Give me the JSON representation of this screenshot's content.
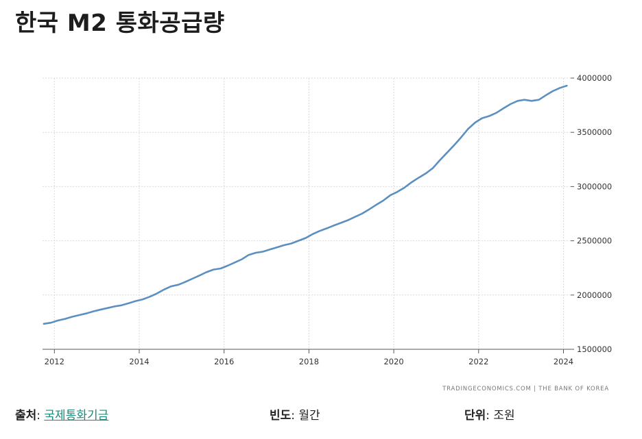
{
  "page": {
    "title": "한국 M2 통화공급량",
    "credit": "TRADINGECONOMICS.COM  |  THE BANK OF KOREA"
  },
  "footer": {
    "source_key": "출처",
    "source_value": "국제통화기금",
    "frequency_key": "빈도",
    "frequency_value": "월간",
    "unit_key": "단위",
    "unit_value": "조원"
  },
  "colors": {
    "line": "#5b8fbf",
    "grid": "#d9d9d9",
    "link": "#1b8a7a"
  },
  "chart_data": {
    "type": "line",
    "title": "한국 M2 통화공급량",
    "xlabel": "",
    "ylabel": "",
    "grid": true,
    "y_axis_side": "right",
    "xlim": [
      2011.72,
      2024.17
    ],
    "ylim": [
      1500000,
      4000000
    ],
    "x_ticks": [
      2012,
      2014,
      2016,
      2018,
      2020,
      2022,
      2024
    ],
    "y_ticks": [
      1500000,
      2000000,
      2500000,
      3000000,
      3500000,
      4000000
    ],
    "series": [
      {
        "x": [
          2011.75,
          2011.92,
          2012.08,
          2012.25,
          2012.42,
          2012.58,
          2012.75,
          2012.92,
          2013.08,
          2013.25,
          2013.42,
          2013.58,
          2013.75,
          2013.92,
          2014.08,
          2014.25,
          2014.42,
          2014.58,
          2014.75,
          2014.92,
          2015.08,
          2015.25,
          2015.42,
          2015.58,
          2015.75,
          2015.92,
          2016.08,
          2016.25,
          2016.42,
          2016.58,
          2016.75,
          2016.92,
          2017.08,
          2017.25,
          2017.42,
          2017.58,
          2017.75,
          2017.92,
          2018.08,
          2018.25,
          2018.42,
          2018.58,
          2018.75,
          2018.92,
          2019.08,
          2019.25,
          2019.42,
          2019.58,
          2019.75,
          2019.92,
          2020.08,
          2020.25,
          2020.42,
          2020.58,
          2020.75,
          2020.92,
          2021.08,
          2021.25,
          2021.42,
          2021.58,
          2021.75,
          2021.92,
          2022.08,
          2022.25,
          2022.42,
          2022.58,
          2022.75,
          2022.92,
          2023.08,
          2023.25,
          2023.42,
          2023.58,
          2023.75,
          2023.92,
          2024.08
        ],
        "values": [
          1735000,
          1745000,
          1765000,
          1780000,
          1800000,
          1815000,
          1830000,
          1850000,
          1865000,
          1880000,
          1895000,
          1905000,
          1925000,
          1945000,
          1960000,
          1985000,
          2015000,
          2050000,
          2080000,
          2095000,
          2120000,
          2150000,
          2180000,
          2210000,
          2235000,
          2245000,
          2270000,
          2300000,
          2330000,
          2370000,
          2390000,
          2400000,
          2420000,
          2440000,
          2460000,
          2475000,
          2500000,
          2525000,
          2560000,
          2590000,
          2615000,
          2640000,
          2665000,
          2690000,
          2720000,
          2750000,
          2790000,
          2830000,
          2870000,
          2920000,
          2950000,
          2990000,
          3040000,
          3080000,
          3120000,
          3170000,
          3240000,
          3310000,
          3380000,
          3450000,
          3530000,
          3590000,
          3630000,
          3650000,
          3680000,
          3720000,
          3760000,
          3790000,
          3800000,
          3790000,
          3800000,
          3840000,
          3880000,
          3910000,
          3930000
        ]
      }
    ]
  }
}
